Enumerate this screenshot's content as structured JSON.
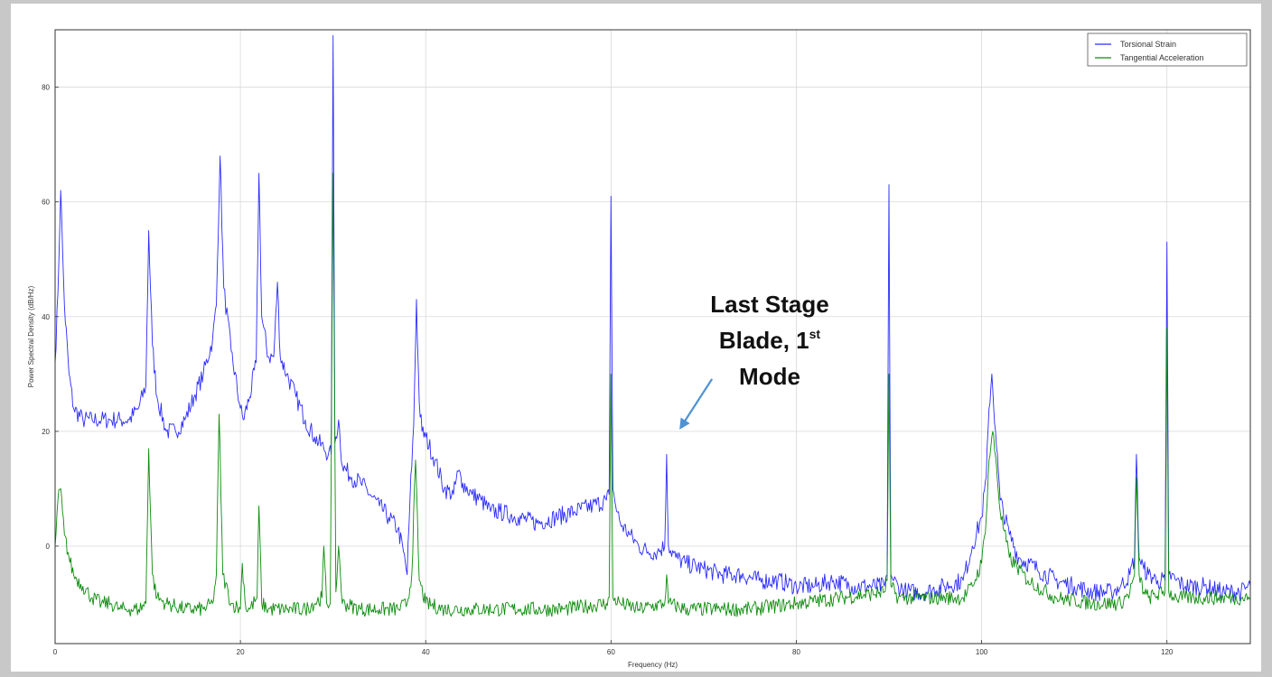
{
  "chart_data": {
    "type": "line",
    "title": "",
    "xlabel": "Frequency (Hz)",
    "ylabel": "Power Spectral Density (dB/Hz)",
    "xlim": [
      0,
      129
    ],
    "ylim": [
      -17,
      90
    ],
    "xticks": [
      0,
      20,
      40,
      60,
      80,
      100,
      120
    ],
    "yticks": [
      0,
      20,
      40,
      60,
      80
    ],
    "ytick_labels": [
      "0",
      "20",
      "40",
      "60",
      "80"
    ],
    "grid": true,
    "legend_position": "top-right",
    "series": [
      {
        "name": "Torsional Strain",
        "color": "#2b2bff",
        "x": [
          0,
          0.3,
          0.6,
          0.8,
          1.0,
          1.5,
          2.0,
          3,
          4,
          5,
          6,
          7,
          8,
          9,
          9.8,
          10.1,
          10.5,
          11,
          12,
          13,
          14,
          15,
          16,
          17,
          17.4,
          17.8,
          18.2,
          19,
          20,
          20.3,
          21,
          21.7,
          22,
          22.3,
          23,
          23.6,
          24,
          24.3,
          25,
          26,
          27,
          28,
          29,
          29.5,
          29.8,
          30,
          30.2,
          30.6,
          31,
          32,
          33,
          34,
          35,
          36,
          37,
          37.6,
          38,
          38.3,
          38.7,
          39,
          39.3,
          39.6,
          40,
          41,
          42,
          43,
          43.5,
          44,
          45,
          46,
          47,
          48,
          50,
          52,
          54,
          56,
          58,
          59.5,
          59.8,
          60,
          60.2,
          60.5,
          61,
          62,
          63,
          64,
          65,
          65.8,
          66,
          66.2,
          67,
          68,
          70,
          72,
          74,
          76,
          78,
          80,
          82,
          84,
          86,
          88,
          89.5,
          89.8,
          90,
          90.2,
          90.5,
          91,
          92,
          94,
          96,
          98,
          99,
          100,
          100.5,
          100.8,
          101.1,
          101.5,
          102,
          103,
          104,
          106,
          108,
          110,
          112,
          114,
          115,
          116,
          116.5,
          116.7,
          117,
          117.5,
          118,
          119,
          119.8,
          120,
          120.2,
          121,
          122,
          124,
          126,
          128,
          129
        ],
        "y": [
          32,
          44,
          62,
          52,
          42,
          30,
          24,
          22,
          22,
          22,
          22,
          22,
          22,
          24,
          28,
          55,
          35,
          26,
          20,
          20,
          22,
          26,
          30,
          36,
          42,
          68,
          45,
          34,
          24,
          22,
          26,
          32,
          65,
          40,
          33,
          33,
          46,
          33,
          30,
          26,
          22,
          19,
          17,
          16,
          16,
          89,
          18,
          22,
          14,
          12,
          11,
          9,
          7,
          5,
          3,
          -1,
          -5,
          8,
          21,
          43,
          25,
          20,
          19,
          15,
          10,
          9,
          13,
          11,
          9,
          8,
          6,
          6,
          5,
          4,
          5,
          6,
          7,
          8,
          9,
          61,
          10,
          7,
          4,
          2,
          0,
          -1,
          -1,
          0,
          16,
          0,
          -2,
          -3,
          -4,
          -5,
          -5,
          -6,
          -6,
          -7,
          -7,
          -6,
          -7,
          -7,
          -7,
          -5,
          63,
          -5,
          -6,
          -7,
          -8,
          -8,
          -7,
          -6,
          0,
          5,
          12,
          24,
          30,
          20,
          8,
          2,
          -2,
          -4,
          -6,
          -7,
          -8,
          -8,
          -7,
          -5,
          -2,
          16,
          -2,
          -4,
          -5,
          -6,
          -6,
          53,
          -5,
          -6,
          -7,
          -7,
          -8,
          -8,
          -7
        ]
      },
      {
        "name": "Tangential Acceleration",
        "color": "#0c8c0c",
        "x": [
          0,
          0.3,
          0.6,
          0.8,
          1.0,
          1.5,
          2,
          3,
          4,
          5,
          6,
          7,
          8,
          9,
          9.8,
          10.1,
          10.5,
          11,
          12,
          14,
          16,
          17,
          17.4,
          17.7,
          18.1,
          19,
          20,
          20.2,
          20.6,
          21,
          21.8,
          22,
          22.3,
          23,
          25,
          27,
          28.8,
          29,
          29.3,
          29.7,
          30,
          30.3,
          30.6,
          31,
          33,
          35,
          37,
          38,
          38.5,
          38.9,
          39.3,
          40,
          42,
          45,
          50,
          55,
          59.5,
          59.8,
          60,
          60.2,
          61,
          63,
          65.8,
          66,
          66.2,
          68,
          70,
          75,
          80,
          85,
          89.5,
          89.8,
          90,
          90.2,
          91,
          94,
          96,
          98,
          99,
          100,
          100.5,
          100.8,
          101.2,
          101.6,
          102,
          103,
          105,
          108,
          112,
          115,
          116,
          116.5,
          116.7,
          117,
          117.5,
          118,
          119.8,
          120,
          120.2,
          121,
          124,
          127,
          129
        ],
        "y": [
          0,
          8,
          10,
          6,
          2,
          -2,
          -5,
          -7,
          -9,
          -10,
          -10,
          -11,
          -11,
          -11,
          -10,
          17,
          -5,
          -9,
          -10,
          -11,
          -11,
          -10,
          -5,
          23,
          -5,
          -10,
          -11,
          -3,
          -11,
          -11,
          -9,
          7,
          -10,
          -11,
          -11,
          -11,
          -9,
          0,
          -10,
          -10,
          65,
          -8,
          0,
          -10,
          -11,
          -11,
          -11,
          -10,
          -5,
          15,
          -6,
          -10,
          -11,
          -11,
          -11,
          -11,
          -10,
          -9,
          30,
          -9,
          -10,
          -11,
          -10,
          -5,
          -10,
          -11,
          -11,
          -11,
          -10,
          -9,
          -8,
          -6,
          30,
          -7,
          -9,
          -9,
          -9,
          -9,
          -7,
          -3,
          5,
          15,
          20,
          14,
          6,
          -2,
          -6,
          -9,
          -10,
          -10,
          -8,
          -5,
          12,
          -5,
          -8,
          -9,
          -8,
          38,
          -8,
          -9,
          -9,
          -9,
          -9
        ]
      }
    ],
    "annotations": [
      {
        "lines": [
          "Last Stage",
          "Blade, 1",
          "Mode"
        ],
        "superscript": "st",
        "arrow_color": "#4f93d2",
        "arrow_target": [
          67,
          20
        ]
      }
    ]
  }
}
